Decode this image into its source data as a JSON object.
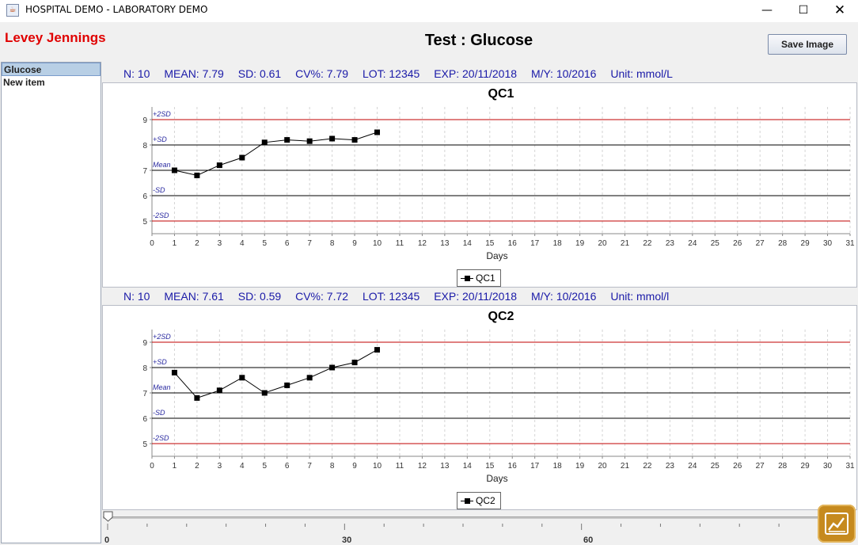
{
  "window": {
    "title": "HOSPITAL DEMO - LABORATORY DEMO",
    "minimize_glyph": "—",
    "maximize_glyph": "☐",
    "close_glyph": "✕"
  },
  "header": {
    "brand": "Levey Jennings",
    "test_title": "Test : Glucose",
    "save_button": "Save Image"
  },
  "sidebar": {
    "items": [
      {
        "label": "Glucose",
        "selected": true
      },
      {
        "label": "New item",
        "selected": false
      }
    ]
  },
  "colors": {
    "stats_text": "#1a1aa8",
    "sd2_line": "#c00000",
    "sd_line": "#000000",
    "mean_line": "#000000",
    "level_label": "#2a2aa0",
    "brand": "#e00000"
  },
  "panels": [
    {
      "stats": {
        "n": "N: 10",
        "mean": "MEAN: 7.79",
        "sd": "SD: 0.61",
        "cv": "CV%: 7.79",
        "lot": "LOT: 12345",
        "exp": "EXP: 20/11/2018",
        "my": "M/Y: 10/2016",
        "unit": "Unit: mmol/L"
      },
      "chart_data": {
        "type": "line",
        "title": "QC1",
        "xlabel": "Days",
        "ylabel": "",
        "xlim": [
          0,
          31
        ],
        "ylim": [
          4.5,
          9.5
        ],
        "x_ticks": [
          0,
          1,
          2,
          3,
          4,
          5,
          6,
          7,
          8,
          9,
          10,
          11,
          12,
          13,
          14,
          15,
          16,
          17,
          18,
          19,
          20,
          21,
          22,
          23,
          24,
          25,
          26,
          27,
          28,
          29,
          30,
          31
        ],
        "y_ticks": [
          5,
          6,
          7,
          8,
          9
        ],
        "grid": "vertical dashed",
        "legend_position": "bottom",
        "control_lines": [
          {
            "label": "+2SD",
            "value": 9,
            "color": "#c00000"
          },
          {
            "label": "+SD",
            "value": 8,
            "color": "#000000"
          },
          {
            "label": "Mean",
            "value": 7,
            "color": "#000000"
          },
          {
            "label": "-SD",
            "value": 6,
            "color": "#000000"
          },
          {
            "label": "-2SD",
            "value": 5,
            "color": "#c00000"
          }
        ],
        "series": [
          {
            "name": "QC1",
            "marker": "square",
            "color": "#000000",
            "x": [
              1,
              2,
              3,
              4,
              5,
              6,
              7,
              8,
              9,
              10
            ],
            "y": [
              7.0,
              6.8,
              7.2,
              7.5,
              8.1,
              8.2,
              8.15,
              8.25,
              8.2,
              8.5
            ]
          }
        ]
      }
    },
    {
      "stats": {
        "n": "N: 10",
        "mean": "MEAN: 7.61",
        "sd": "SD: 0.59",
        "cv": "CV%: 7.72",
        "lot": "LOT: 12345",
        "exp": "EXP: 20/11/2018",
        "my": "M/Y: 10/2016",
        "unit": "Unit: mmol/l"
      },
      "chart_data": {
        "type": "line",
        "title": "QC2",
        "xlabel": "Days",
        "ylabel": "",
        "xlim": [
          0,
          31
        ],
        "ylim": [
          4.5,
          9.5
        ],
        "x_ticks": [
          0,
          1,
          2,
          3,
          4,
          5,
          6,
          7,
          8,
          9,
          10,
          11,
          12,
          13,
          14,
          15,
          16,
          17,
          18,
          19,
          20,
          21,
          22,
          23,
          24,
          25,
          26,
          27,
          28,
          29,
          30,
          31
        ],
        "y_ticks": [
          5,
          6,
          7,
          8,
          9
        ],
        "grid": "vertical dashed",
        "legend_position": "bottom",
        "control_lines": [
          {
            "label": "+2SD",
            "value": 9,
            "color": "#c00000"
          },
          {
            "label": "+SD",
            "value": 8,
            "color": "#000000"
          },
          {
            "label": "Mean",
            "value": 7,
            "color": "#000000"
          },
          {
            "label": "-SD",
            "value": 6,
            "color": "#000000"
          },
          {
            "label": "-2SD",
            "value": 5,
            "color": "#c00000"
          }
        ],
        "series": [
          {
            "name": "QC2",
            "marker": "square",
            "color": "#000000",
            "x": [
              1,
              2,
              3,
              4,
              5,
              6,
              7,
              8,
              9,
              10
            ],
            "y": [
              7.8,
              6.8,
              7.1,
              7.6,
              7.0,
              7.3,
              7.6,
              8.0,
              8.2,
              8.7
            ]
          }
        ]
      }
    }
  ],
  "slider": {
    "min": 0,
    "max": 90,
    "value": 0,
    "labels": [
      "0",
      "30",
      "60"
    ]
  },
  "badge": {
    "icon": "line-chart-icon"
  }
}
